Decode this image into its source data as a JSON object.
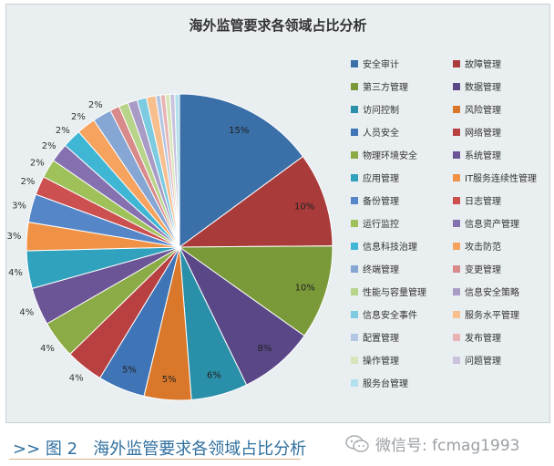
{
  "chart_data": {
    "type": "pie",
    "title": "海外监管要求各领域占比分析",
    "legend_position": "right",
    "slices": [
      {
        "name": "安全审计",
        "value": 15,
        "label": "15%",
        "color": "#3a6fa8"
      },
      {
        "name": "故障管理",
        "value": 10,
        "label": "10%",
        "color": "#a93b3b"
      },
      {
        "name": "第三方管理",
        "value": 10,
        "label": "10%",
        "color": "#7a9a3a"
      },
      {
        "name": "数据管理",
        "value": 8,
        "label": "8%",
        "color": "#5a4787"
      },
      {
        "name": "访问控制",
        "value": 6,
        "label": "6%",
        "color": "#2a8fa8"
      },
      {
        "name": "风险管理",
        "value": 5,
        "label": "5%",
        "color": "#d9782a"
      },
      {
        "name": "人员安全",
        "value": 5,
        "label": "5%",
        "color": "#3f74b6"
      },
      {
        "name": "网络管理",
        "value": 4,
        "label": "4%",
        "color": "#b84040"
      },
      {
        "name": "物理环境安全",
        "value": 4,
        "label": "4%",
        "color": "#8aab45"
      },
      {
        "name": "系统管理",
        "value": 4,
        "label": "4%",
        "color": "#6b5596"
      },
      {
        "name": "应用管理",
        "value": 4,
        "label": "4%",
        "color": "#30a2bd"
      },
      {
        "name": "IT服务连续性管理",
        "value": 3,
        "label": "3%",
        "color": "#ef9245"
      },
      {
        "name": "备份管理",
        "value": 3,
        "label": "3%",
        "color": "#5587c8"
      },
      {
        "name": "日志管理",
        "value": 2,
        "label": "2%",
        "color": "#cc5050"
      },
      {
        "name": "运行监控",
        "value": 2,
        "label": "2%",
        "color": "#9fc15a"
      },
      {
        "name": "信息资产管理",
        "value": 2,
        "label": "2%",
        "color": "#8571b0"
      },
      {
        "name": "信息科技治理",
        "value": 2,
        "label": "2%",
        "color": "#3fb6d3"
      },
      {
        "name": "攻击防范",
        "value": 2,
        "label": "2%",
        "color": "#f5a35e"
      },
      {
        "name": "终端管理",
        "value": 2,
        "label": "2%",
        "color": "#86a6d4"
      },
      {
        "name": "变更管理",
        "value": 1,
        "label": "",
        "color": "#d88a8a"
      },
      {
        "name": "性能与容量管理",
        "value": 1,
        "label": "",
        "color": "#b8d38a"
      },
      {
        "name": "信息安全策略",
        "value": 1,
        "label": "",
        "color": "#a89bc6"
      },
      {
        "name": "信息安全事件",
        "value": 1,
        "label": "",
        "color": "#7ccbe0"
      },
      {
        "name": "服务水平管理",
        "value": 1,
        "label": "",
        "color": "#f7bf8e"
      },
      {
        "name": "配置管理",
        "value": 0.5,
        "label": "",
        "color": "#b3c6e3"
      },
      {
        "name": "发布管理",
        "value": 0.5,
        "label": "",
        "color": "#e7b3b3"
      },
      {
        "name": "操作管理",
        "value": 0.5,
        "label": "",
        "color": "#d6e6b8"
      },
      {
        "name": "问题管理",
        "value": 0.5,
        "label": "",
        "color": "#c9c2dd"
      },
      {
        "name": "服务台管理",
        "value": 0.5,
        "label": "",
        "color": "#b2e0ec"
      }
    ]
  },
  "caption": {
    "prefix": ">>",
    "figure": "图 2",
    "text": "海外监管要求各领域占比分析"
  },
  "watermark": {
    "text": "微信号: fcmag1993",
    "icon": "wechat-icon"
  }
}
